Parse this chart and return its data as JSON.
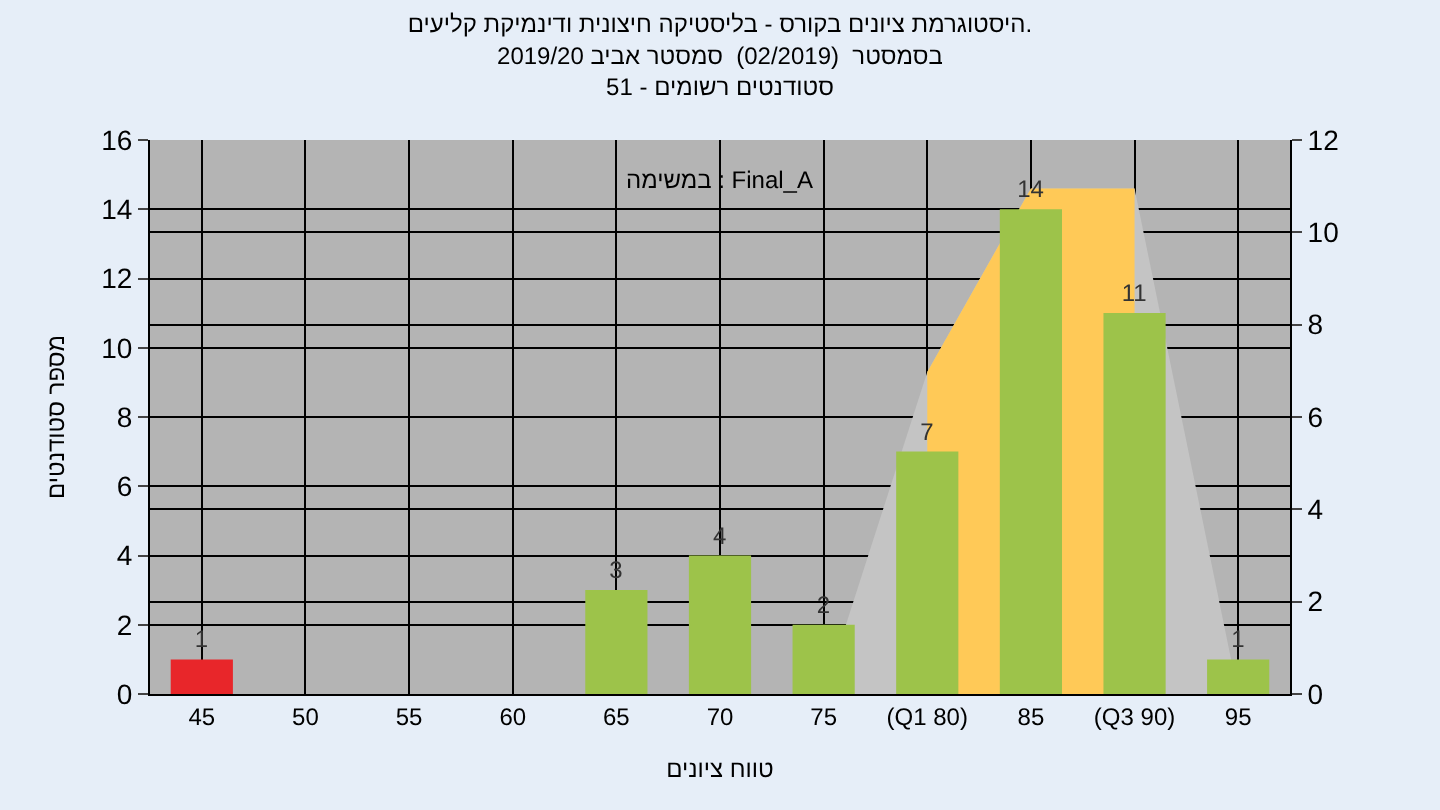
{
  "chart_data": {
    "type": "bar",
    "title": "היסטוגרמת ציונים בקורס - בליסטיקה חיצונית ודינמיקת קליעים.",
    "subtitle": "בסמסטר  (02/2019)  סמסטר אביב 2019/20\nסטודנטים רשומים - 51",
    "xlabel": "טווח ציונים",
    "ylabel": "מספר סטודנטים",
    "annotations": [
      "במשימה : Final_A"
    ],
    "categories": [
      "45",
      "50",
      "55",
      "60",
      "65",
      "70",
      "75",
      "(Q1 80)",
      "85",
      "(Q3 90)",
      "95"
    ],
    "series": [
      {
        "type": "area",
        "color": "#c4c4c4",
        "values": [
          null,
          null,
          null,
          null,
          null,
          null,
          0,
          9.3,
          14.6,
          14.6,
          0
        ]
      },
      {
        "type": "area",
        "color": "#ffc957",
        "values": [
          null,
          null,
          null,
          null,
          null,
          null,
          null,
          9.3,
          14.6,
          14.6,
          null
        ]
      },
      {
        "colors": [
          "#e8262a",
          "#9dc34a",
          "#9dc34a",
          "#9dc34a",
          "#9dc34a",
          "#9dc34a",
          "#9dc34a",
          "#9dc34a",
          "#9dc34a",
          "#9dc34a",
          "#9dc34a"
        ],
        "values": [
          1,
          0,
          0,
          0,
          3,
          4,
          2,
          7,
          14,
          11,
          1
        ],
        "value_labels": [
          "1",
          null,
          null,
          null,
          "3",
          "4",
          "2",
          "7",
          "14",
          "11",
          "1"
        ]
      }
    ],
    "ylim": [
      0,
      16
    ],
    "yticks": [
      0,
      2,
      4,
      6,
      8,
      10,
      12,
      14,
      16
    ],
    "y2lim": [
      0,
      12
    ],
    "y2ticks": [
      0,
      2,
      4,
      6,
      8,
      10,
      12
    ],
    "grid": true
  }
}
